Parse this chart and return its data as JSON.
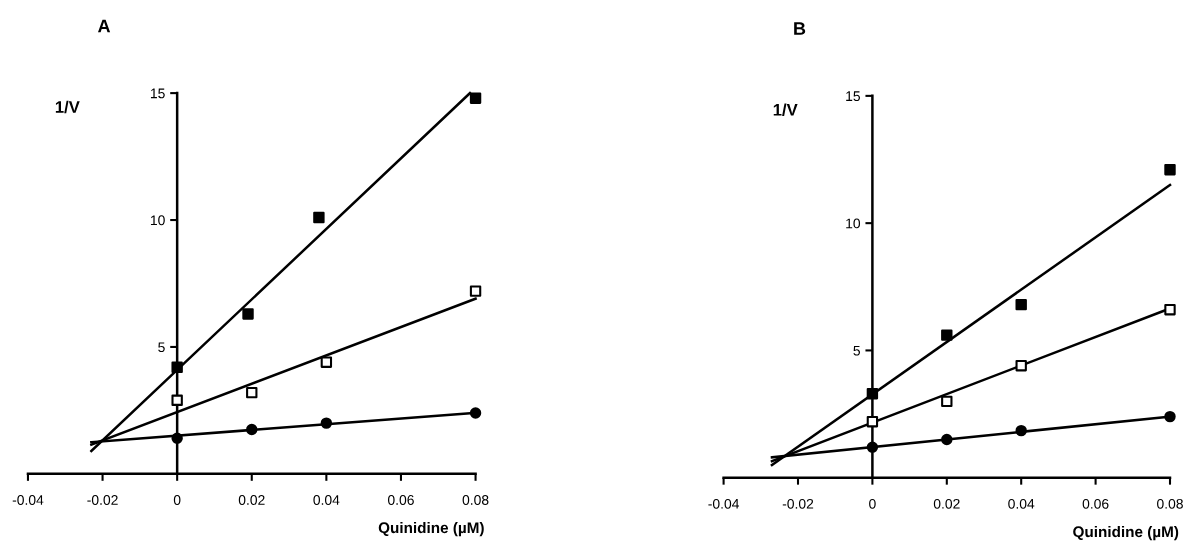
{
  "chart_data": [
    {
      "type": "scatter",
      "title": "A",
      "xlabel": "Quinidine (µM)",
      "ylabel": "1/V",
      "xlim": [
        -0.04,
        0.08
      ],
      "ylim": [
        0,
        15
      ],
      "xticks": [
        -0.04,
        -0.02,
        0,
        0.02,
        0.04,
        0.06,
        0.08
      ],
      "yticks": [
        5,
        10,
        15
      ],
      "grid": false,
      "legend": false,
      "series": [
        {
          "marker": "square",
          "color": "#000000",
          "x": [
            0,
            0.019,
            0.038,
            0.08
          ],
          "values": [
            4.2,
            6.3,
            10.1,
            14.8
          ]
        },
        {
          "marker": "square",
          "color": "#ffffff",
          "x": [
            0,
            0.02,
            0.04,
            0.08
          ],
          "values": [
            2.9,
            3.2,
            4.4,
            7.2
          ]
        },
        {
          "marker": "circle",
          "color": "#000000",
          "x": [
            0,
            0.02,
            0.04,
            0.08
          ],
          "values": [
            1.4,
            1.75,
            2.0,
            2.4
          ]
        },
        {
          "type": "line",
          "marker": "none",
          "color": "#000000",
          "x": [
            -0.023,
            0.0785
          ],
          "values": [
            0.9,
            15.0
          ]
        },
        {
          "type": "line",
          "marker": "none",
          "color": "#000000",
          "x": [
            -0.023,
            0.08
          ],
          "values": [
            1.15,
            6.9
          ]
        },
        {
          "type": "line",
          "marker": "none",
          "color": "#000000",
          "x": [
            -0.023,
            0.08
          ],
          "values": [
            1.25,
            2.4
          ]
        }
      ]
    },
    {
      "type": "scatter",
      "title": "B",
      "xlabel": "Quinidine (µM)",
      "ylabel": "1/V",
      "xlim": [
        -0.04,
        0.08
      ],
      "ylim": [
        0,
        15
      ],
      "xticks": [
        -0.04,
        -0.02,
        0,
        0.02,
        0.04,
        0.06,
        0.08
      ],
      "yticks": [
        5,
        10,
        15
      ],
      "grid": false,
      "legend": false,
      "series": [
        {
          "marker": "square",
          "color": "#000000",
          "x": [
            0,
            0.02,
            0.04,
            0.08
          ],
          "values": [
            3.3,
            5.6,
            6.8,
            12.1
          ]
        },
        {
          "marker": "square",
          "color": "#ffffff",
          "x": [
            0,
            0.02,
            0.04,
            0.08
          ],
          "values": [
            2.2,
            3.0,
            4.4,
            6.6
          ]
        },
        {
          "marker": "circle",
          "color": "#000000",
          "x": [
            0,
            0.02,
            0.04,
            0.08
          ],
          "values": [
            1.2,
            1.5,
            1.85,
            2.4
          ]
        },
        {
          "type": "line",
          "marker": "none",
          "color": "#000000",
          "x": [
            -0.027,
            0.08
          ],
          "values": [
            0.5,
            11.5
          ]
        },
        {
          "type": "line",
          "marker": "none",
          "color": "#000000",
          "x": [
            -0.027,
            0.08
          ],
          "values": [
            0.65,
            6.65
          ]
        },
        {
          "type": "line",
          "marker": "none",
          "color": "#000000",
          "x": [
            -0.027,
            0.08
          ],
          "values": [
            0.8,
            2.4
          ]
        }
      ]
    }
  ]
}
